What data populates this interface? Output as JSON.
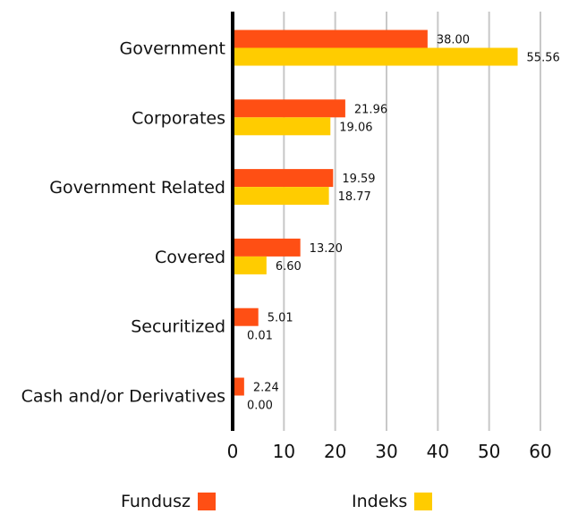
{
  "chart_data": {
    "type": "bar",
    "orientation": "horizontal",
    "categories": [
      "Government",
      "Corporates",
      "Government Related",
      "Covered",
      "Securitized",
      "Cash and/or Derivatives"
    ],
    "series": [
      {
        "name": "Fundusz",
        "values": [
          38.0,
          21.96,
          19.59,
          13.2,
          5.01,
          2.24
        ],
        "labels": [
          "38.00",
          "21.96",
          "19.59",
          "13.20",
          "5.01",
          "2.24"
        ],
        "color": "#ff4f14"
      },
      {
        "name": "Indeks",
        "values": [
          55.56,
          19.06,
          18.77,
          6.6,
          0.01,
          0.0
        ],
        "labels": [
          "55.56",
          "19.06",
          "18.77",
          "6.60",
          "0.01",
          "0.00"
        ],
        "color": "#ffcc00"
      }
    ],
    "xticks": [
      "0",
      "10",
      "20",
      "30",
      "40",
      "50",
      "60"
    ],
    "xlim": [
      0,
      60
    ],
    "grid": true,
    "legend_position": "bottom"
  }
}
